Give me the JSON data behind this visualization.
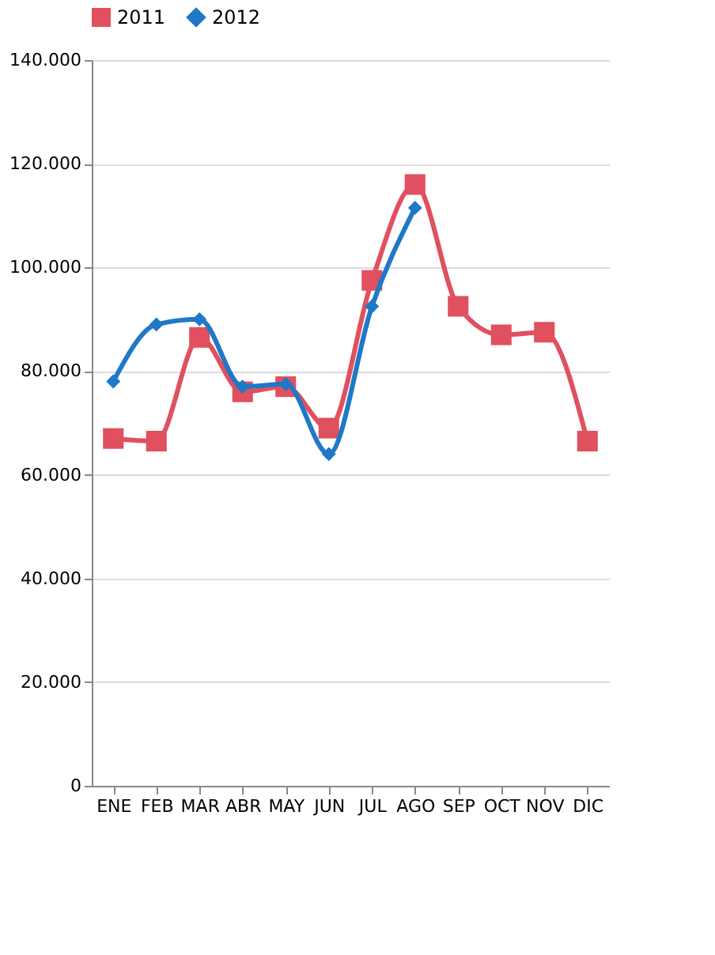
{
  "chart_data": {
    "type": "line",
    "categories": [
      "ENE",
      "FEB",
      "MAR",
      "ABR",
      "MAY",
      "JUN",
      "JUL",
      "AGO",
      "SEP",
      "OCT",
      "NOV",
      "DIC"
    ],
    "series": [
      {
        "name": "2011",
        "color": "#e0505e",
        "marker": "square",
        "values": [
          67000,
          66500,
          86500,
          76000,
          77000,
          69000,
          97500,
          116000,
          92500,
          87000,
          87500,
          66500
        ]
      },
      {
        "name": "2012",
        "color": "#1f78c8",
        "marker": "diamond",
        "values": [
          78000,
          89000,
          90000,
          77000,
          77500,
          64000,
          92500,
          111500,
          null,
          null,
          null,
          null
        ]
      }
    ],
    "ylim": [
      0,
      140000
    ],
    "yticks": [
      {
        "value": 0,
        "label": "0"
      },
      {
        "value": 20000,
        "label": "20.000"
      },
      {
        "value": 40000,
        "label": "40.000"
      },
      {
        "value": 60000,
        "label": "60.000"
      },
      {
        "value": 80000,
        "label": "80.000"
      },
      {
        "value": 100000,
        "label": "100.000"
      },
      {
        "value": 120000,
        "label": "120.000"
      },
      {
        "value": 140000,
        "label": "140.000"
      }
    ],
    "grid": "y",
    "legend": "top",
    "line_style": "solid"
  }
}
